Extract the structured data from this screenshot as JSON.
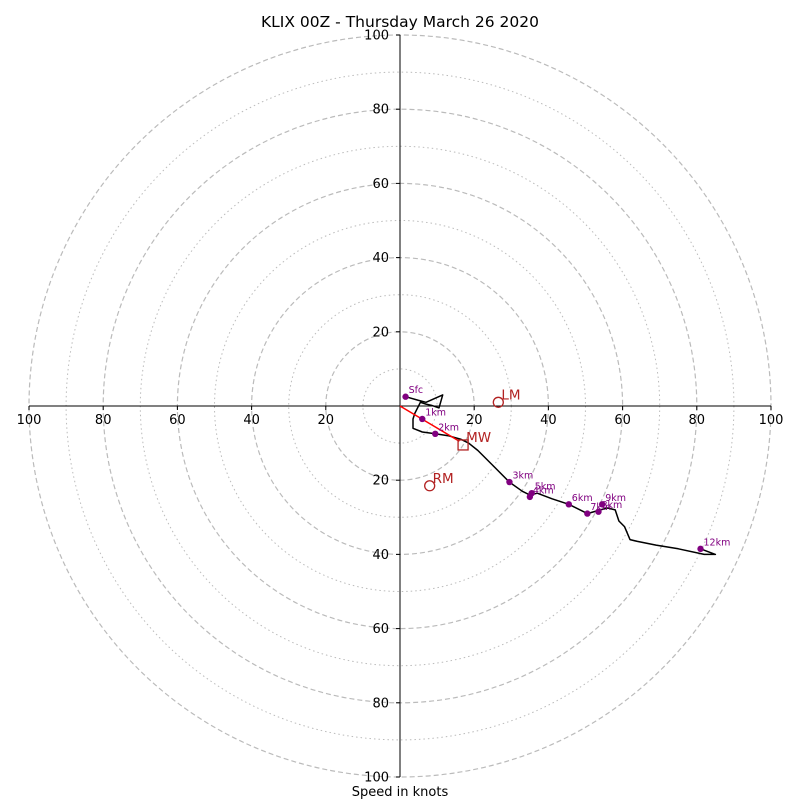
{
  "chart_data": {
    "type": "line",
    "title": "KLIX 00Z - Thursday March 26 2020",
    "xlabel": "Speed in knots",
    "ylabel": "",
    "xlim": [
      -100,
      100
    ],
    "ylim": [
      -100,
      100
    ],
    "grid": true,
    "rings_major": [
      20,
      40,
      60,
      80,
      100
    ],
    "rings_minor": [
      10,
      30,
      50,
      70,
      90
    ],
    "x_ticks": [
      {
        "value": -100,
        "label": "100"
      },
      {
        "value": -80,
        "label": "80"
      },
      {
        "value": -60,
        "label": "60"
      },
      {
        "value": -40,
        "label": "40"
      },
      {
        "value": -20,
        "label": "20"
      },
      {
        "value": 20,
        "label": "20"
      },
      {
        "value": 40,
        "label": "40"
      },
      {
        "value": 60,
        "label": "60"
      },
      {
        "value": 80,
        "label": "80"
      },
      {
        "value": 100,
        "label": "100"
      }
    ],
    "y_ticks": [
      {
        "value": 100,
        "label": "100"
      },
      {
        "value": 80,
        "label": "80"
      },
      {
        "value": 60,
        "label": "60"
      },
      {
        "value": 40,
        "label": "40"
      },
      {
        "value": 20,
        "label": "20"
      },
      {
        "value": -20,
        "label": "20"
      },
      {
        "value": -40,
        "label": "40"
      },
      {
        "value": -60,
        "label": "60"
      },
      {
        "value": -80,
        "label": "80"
      },
      {
        "value": -100,
        "label": "100"
      }
    ],
    "hodograph": [
      [
        1.5,
        2.5
      ],
      [
        5,
        1.5
      ],
      [
        7,
        1
      ],
      [
        11.5,
        3
      ],
      [
        10.5,
        -0.5
      ],
      [
        8.5,
        0.2
      ],
      [
        7,
        0.5
      ],
      [
        5.5,
        1
      ],
      [
        4,
        -2
      ],
      [
        3.5,
        -3.5
      ],
      [
        3.5,
        -6
      ],
      [
        6,
        -7
      ],
      [
        9.5,
        -7.5
      ],
      [
        13,
        -8
      ],
      [
        16.5,
        -9
      ],
      [
        18.5,
        -10
      ],
      [
        21,
        -12
      ],
      [
        25,
        -16
      ],
      [
        29.5,
        -20.5
      ],
      [
        33,
        -23
      ],
      [
        35,
        -24
      ],
      [
        37,
        -23.5
      ],
      [
        41,
        -25
      ],
      [
        45.5,
        -26.5
      ],
      [
        50.5,
        -29
      ],
      [
        54,
        -28
      ],
      [
        56,
        -27.5
      ],
      [
        58,
        -28
      ],
      [
        59,
        -31
      ],
      [
        60.5,
        -32.5
      ],
      [
        62,
        -36
      ],
      [
        64,
        -36.5
      ],
      [
        69,
        -37.5
      ],
      [
        75,
        -38.5
      ],
      [
        82,
        -40
      ],
      [
        85,
        -40
      ],
      [
        81,
        -38.5
      ]
    ],
    "height_markers": [
      {
        "label": "Sfc",
        "u": 1.5,
        "v": 2.5
      },
      {
        "label": "1km",
        "u": 6,
        "v": -3.5
      },
      {
        "label": "2km",
        "u": 9.5,
        "v": -7.5
      },
      {
        "label": "3km",
        "u": 29.5,
        "v": -20.5
      },
      {
        "label": "4km",
        "u": 35,
        "v": -24.5
      },
      {
        "label": "5km",
        "u": 35.5,
        "v": -23.5
      },
      {
        "label": "6km",
        "u": 45.5,
        "v": -26.5
      },
      {
        "label": "7km",
        "u": 50.5,
        "v": -29
      },
      {
        "label": "8km",
        "u": 53.5,
        "v": -28.5
      },
      {
        "label": "9km",
        "u": 54.5,
        "v": -26.5
      },
      {
        "label": "12km",
        "u": 81,
        "v": -38.5
      }
    ],
    "shear_vector": {
      "from": [
        0,
        0
      ],
      "to": [
        16,
        -9.5
      ],
      "color": "#ff0000"
    },
    "storm_motion": [
      {
        "label": "LM",
        "u": 26.5,
        "v": 1,
        "marker": "circle"
      },
      {
        "label": "MW",
        "u": 17,
        "v": -10.5,
        "marker": "square"
      },
      {
        "label": "RM",
        "u": 8,
        "v": -21.5,
        "marker": "circle"
      }
    ],
    "colors": {
      "hodograph": "#000000",
      "markers": "#800080",
      "storm_motion": "#b22222",
      "shear": "#ff0000",
      "grid": "#bbbbbb"
    }
  }
}
